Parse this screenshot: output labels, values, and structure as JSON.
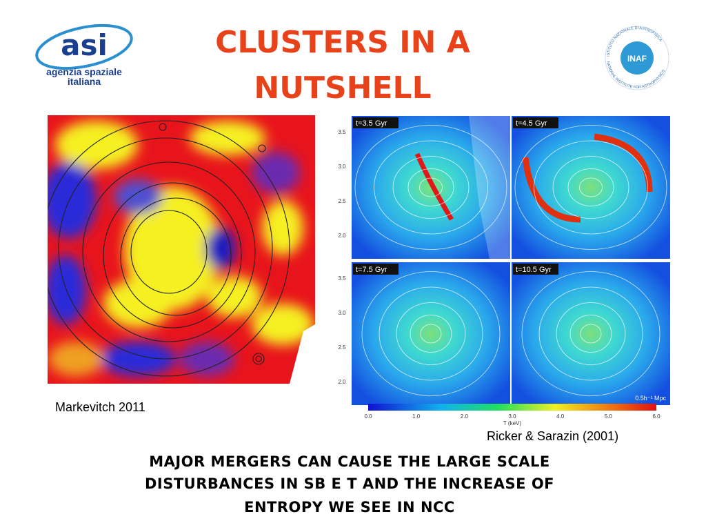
{
  "header": {
    "title_lines": [
      "CLUSTERS IN A",
      "NUTSHELL"
    ]
  },
  "logos": {
    "asi": {
      "mark": "asi",
      "text_lines": [
        "agenzia spaziale",
        "italiana"
      ]
    },
    "inaf": {
      "mark": "INAF",
      "ring_top": "ISTITUTO NAZIONALE DI ASTROFISICA",
      "ring_bottom": "NATIONAL INSTITUTE FOR ASTROPHYSICS"
    }
  },
  "left_figure": {
    "caption": "Markevitch 2011"
  },
  "right_figure": {
    "panels": [
      "t=3.5 Gyr",
      "t=4.5 Gyr",
      "t=7.5 Gyr",
      "t=10.5 Gyr"
    ],
    "y_axis_ticks": [
      "3.5",
      "3.0",
      "2.5",
      "2.0"
    ],
    "scale_label": "0.5h⁻¹ Mpc",
    "colorbar_ticks": [
      "0.0",
      "1.0",
      "2.0",
      "3.0",
      "4.0",
      "5.0",
      "6.0"
    ],
    "colorbar_label": "T (keV)",
    "caption": "Ricker & Sarazin (2001)"
  },
  "footer": {
    "lines": [
      "MAJOR MERGERS CAN CAUSE THE LARGE SCALE",
      "DISTURBANCES IN SB E T AND THE INCREASE OF",
      "ENTROPY WE SEE IN NCC"
    ]
  }
}
